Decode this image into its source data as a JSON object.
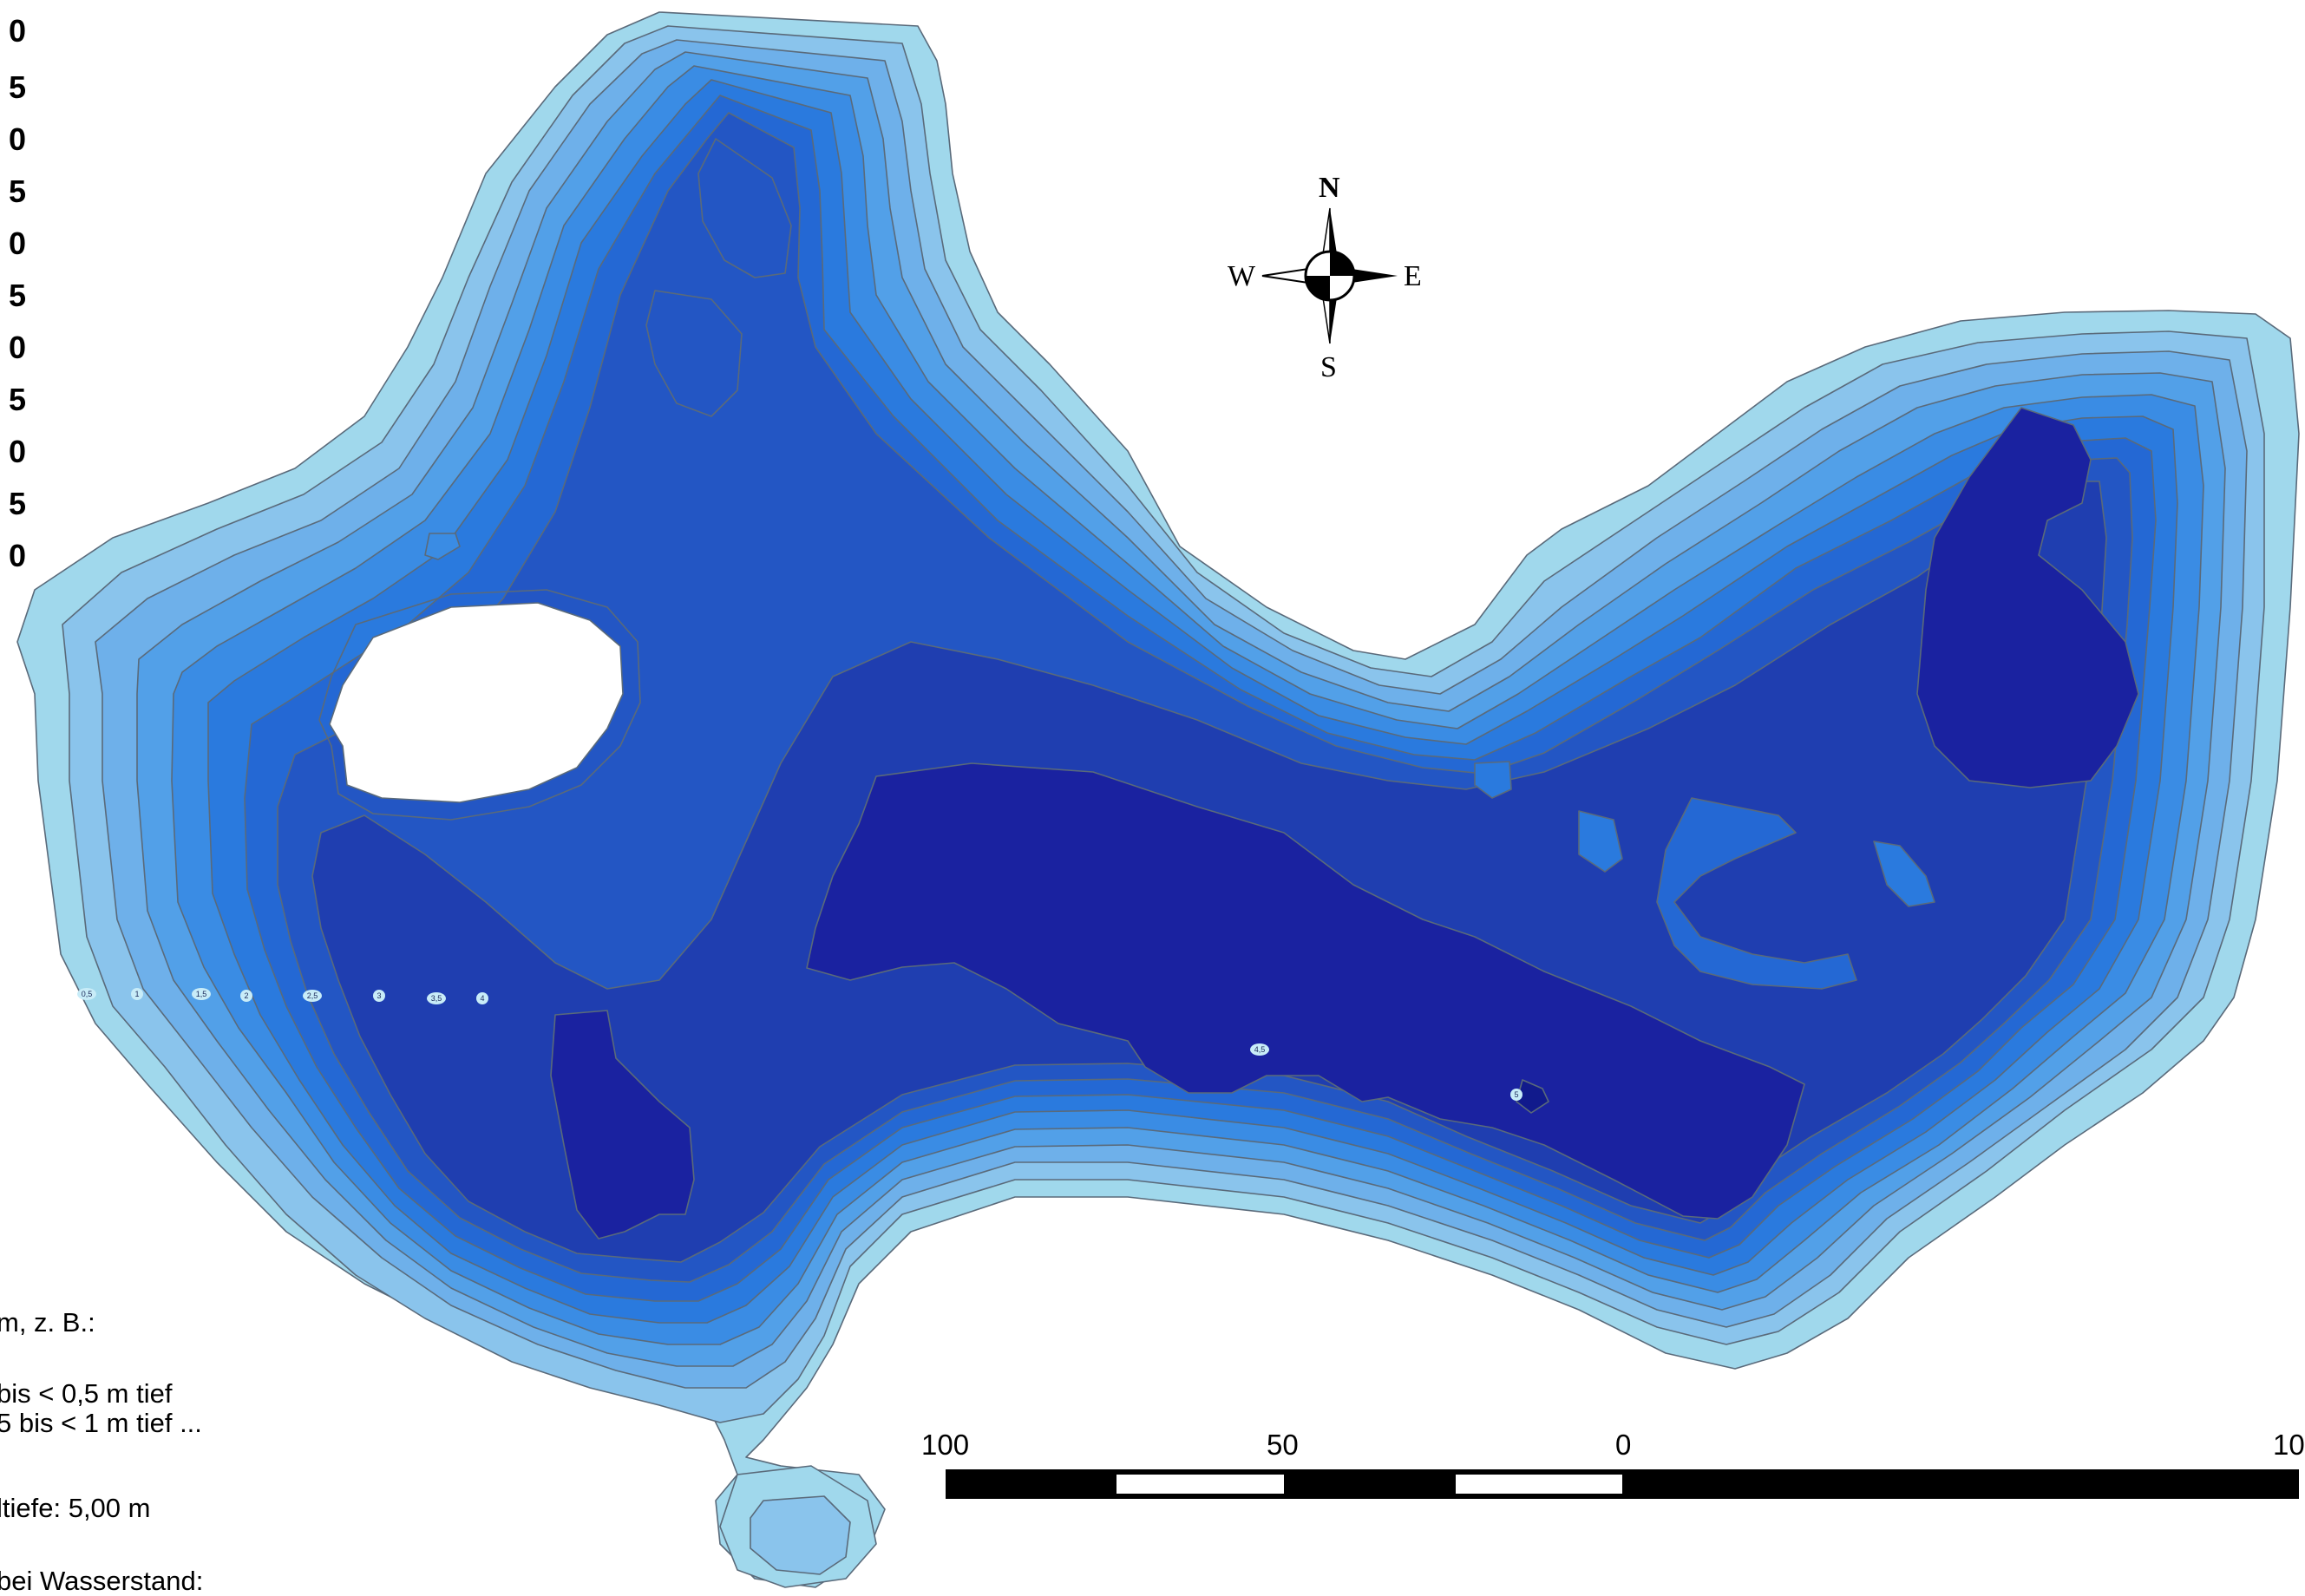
{
  "legend": {
    "depth_values": [
      "0",
      "5",
      "0",
      "5",
      "0",
      "5",
      "0",
      "5",
      "0",
      "5",
      "0"
    ]
  },
  "notes": {
    "line1": "m, z. B.:",
    "line2": "bis < 0,5 m tief",
    "line3": "5 bis < 1 m tief ...",
    "line4": "ltiefe: 5,00 m",
    "line5": "bei Wasserstand:"
  },
  "contour_labels": [
    "0,5",
    "1",
    "1,5",
    "2",
    "2,5",
    "3",
    "3,5",
    "4",
    "4,5",
    "5"
  ],
  "compass": {
    "n": "N",
    "e": "E",
    "s": "S",
    "w": "W"
  },
  "scale_bar": {
    "labels": [
      "100",
      "50",
      "0",
      "10"
    ]
  },
  "colors": {
    "depth_0": "#a0d8ec",
    "depth_0_5": "#8ac4ec",
    "depth_1": "#6eb0ea",
    "depth_1_5": "#52a0e8",
    "depth_2": "#3a8ce4",
    "depth_2_5": "#2a7ade",
    "depth_3": "#2468d4",
    "depth_3_5": "#2356c4",
    "depth_4": "#1f3eb0",
    "depth_4_5": "#1a22a0",
    "depth_5": "#111a8c"
  }
}
